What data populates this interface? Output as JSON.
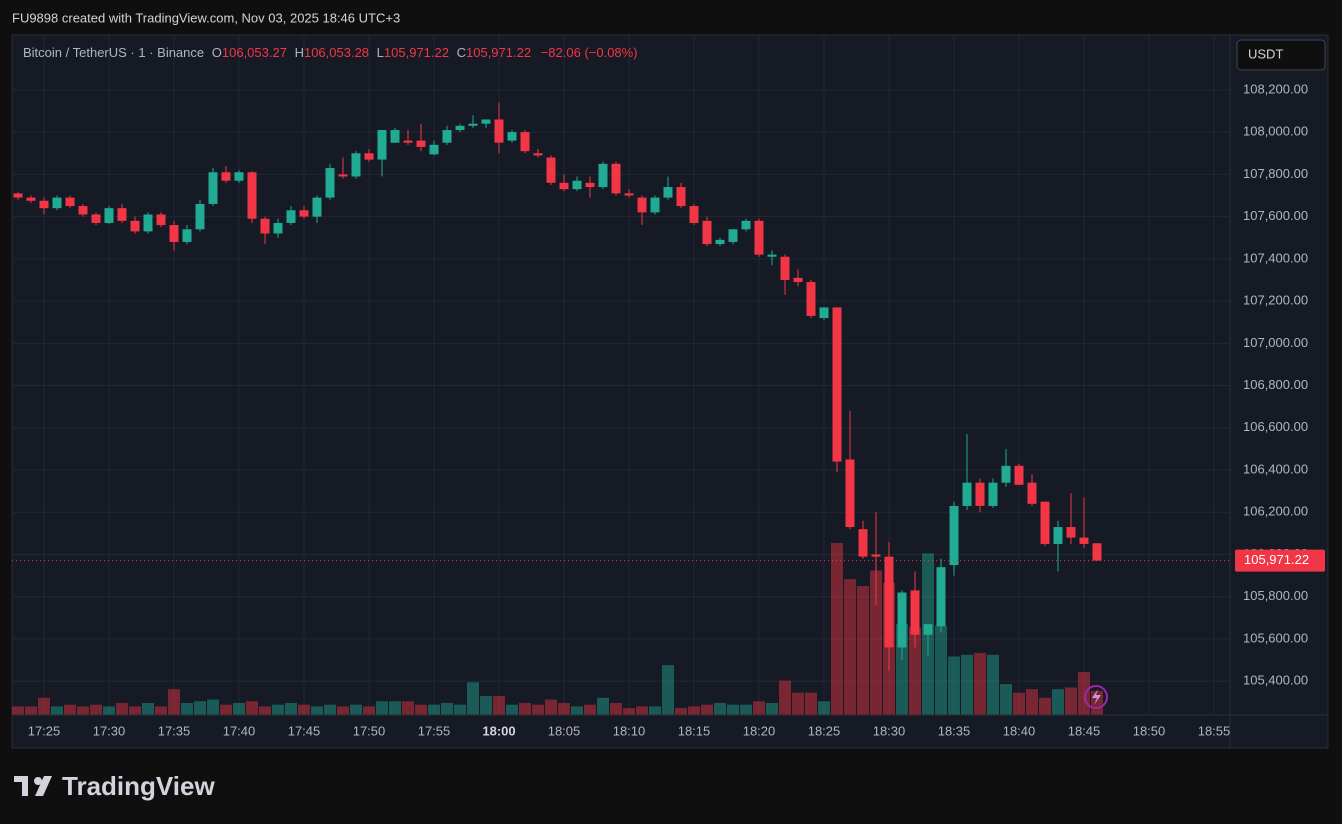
{
  "chart_data": {
    "type": "candlestick",
    "watermark": "FU9898 created with TradingView.com, Nov 03, 2025 18:46 UTC+3",
    "symbol": "Bitcoin / TetherUS · 1 · Binance",
    "ohlc_legend": {
      "o_key": "O",
      "o": "106,053.27",
      "h_key": "H",
      "h": "106,053.28",
      "l_key": "L",
      "l": "105,971.22",
      "c_key": "C",
      "c": "105,971.22",
      "change": "−82.06 (−0.08%)"
    },
    "currency": "USDT",
    "brand": "TradingView",
    "up_color": "#22ab94",
    "down_color": "#f23645",
    "categories": [
      null,
      null,
      "17:25",
      null,
      null,
      null,
      null,
      "17:30",
      null,
      null,
      null,
      null,
      "17:35",
      null,
      null,
      null,
      null,
      "17:40",
      null,
      null,
      null,
      null,
      "17:45",
      null,
      null,
      null,
      null,
      "17:50",
      null,
      null,
      null,
      null,
      "17:55",
      null,
      null,
      null,
      null,
      "18:00",
      null,
      null,
      null,
      null,
      "18:05",
      null,
      null,
      null,
      null,
      "18:10",
      null,
      null,
      null,
      null,
      "18:15",
      null,
      null,
      null,
      null,
      "18:20",
      null,
      null,
      null,
      null,
      "18:25",
      null,
      null,
      null,
      null,
      "18:30",
      null,
      null,
      null,
      null,
      "18:35",
      null,
      null,
      null,
      null,
      "18:40",
      null,
      null,
      null,
      null,
      "18:45",
      null,
      null,
      null,
      null,
      "18:50",
      null,
      null,
      null,
      null,
      "18:55"
    ],
    "open": [
      107710,
      107690,
      107675,
      107640,
      107690,
      107650,
      107610,
      107570,
      107640,
      107580,
      107530,
      107610,
      107560,
      107480,
      107540,
      107660,
      107810,
      107770,
      107810,
      107590,
      107520,
      107570,
      107630,
      107600,
      107690,
      107800,
      107790,
      107900,
      107870,
      107950,
      107960,
      107960,
      107895,
      107950,
      108010,
      108030,
      108040,
      108060,
      107960,
      108000,
      107900,
      107880,
      107760,
      107730,
      107760,
      107740,
      107850,
      107710,
      107690,
      107620,
      107690,
      107740,
      107650,
      107580,
      107470,
      107480,
      107540,
      107580,
      107410,
      107410,
      107310,
      107290,
      107120,
      107170,
      106450,
      106120,
      106000,
      105990,
      105560,
      105830,
      105620,
      105660,
      105950,
      106230,
      106340,
      106230,
      106340,
      106420,
      106340,
      106250,
      106050,
      106130,
      106080,
      106053.27,
      null,
      null,
      null,
      null,
      null,
      null,
      null,
      null,
      null
    ],
    "high": [
      107715,
      107700,
      107690,
      107700,
      107700,
      107660,
      107620,
      107650,
      107660,
      107600,
      107620,
      107620,
      107580,
      107560,
      107680,
      107830,
      107840,
      107820,
      107815,
      107600,
      107590,
      107650,
      107650,
      107700,
      107850,
      107880,
      107910,
      107920,
      108010,
      108020,
      108010,
      108040,
      107960,
      108030,
      108040,
      108080,
      108060,
      108140,
      108010,
      108010,
      107920,
      107890,
      107800,
      107790,
      107790,
      107860,
      107860,
      107730,
      107700,
      107700,
      107790,
      107760,
      107660,
      107600,
      107500,
      107540,
      107590,
      107590,
      107440,
      107420,
      107350,
      107300,
      107170,
      107170,
      106680,
      106160,
      106200,
      106060,
      105830,
      105920,
      105670,
      105980,
      106250,
      106570,
      106360,
      106360,
      106500,
      106430,
      106380,
      106250,
      106160,
      106290,
      106270,
      106053.28,
      null,
      null,
      null,
      null,
      null,
      null,
      null,
      null,
      null
    ],
    "low": [
      107680,
      107665,
      107610,
      107630,
      107640,
      107600,
      107560,
      107565,
      107570,
      107520,
      107520,
      107550,
      107440,
      107470,
      107530,
      107650,
      107760,
      107760,
      107570,
      107470,
      107500,
      107560,
      107590,
      107570,
      107680,
      107780,
      107780,
      107860,
      107790,
      107950,
      107940,
      107910,
      107890,
      107940,
      108000,
      108020,
      108020,
      107900,
      107950,
      107900,
      107880,
      107750,
      107720,
      107720,
      107690,
      107730,
      107700,
      107690,
      107560,
      107610,
      107680,
      107640,
      107560,
      107460,
      107460,
      107470,
      107530,
      107410,
      107370,
      107230,
      107270,
      107120,
      107110,
      106390,
      106120,
      105980,
      105760,
      105450,
      105500,
      105560,
      105520,
      105630,
      105900,
      106210,
      106200,
      106220,
      106320,
      106330,
      106230,
      106040,
      105920,
      106050,
      106030,
      105971.22,
      null,
      null,
      null,
      null,
      null,
      null,
      null,
      null,
      null
    ],
    "close": [
      107690,
      107675,
      107640,
      107690,
      107650,
      107610,
      107570,
      107640,
      107580,
      107530,
      107610,
      107560,
      107480,
      107540,
      107660,
      107810,
      107770,
      107810,
      107590,
      107520,
      107570,
      107630,
      107600,
      107690,
      107830,
      107790,
      107900,
      107870,
      108010,
      108010,
      107950,
      107930,
      107940,
      108010,
      108030,
      108040,
      108060,
      107950,
      108000,
      107910,
      107890,
      107760,
      107730,
      107770,
      107740,
      107850,
      107710,
      107700,
      107620,
      107690,
      107740,
      107650,
      107570,
      107470,
      107490,
      107540,
      107580,
      107420,
      107420,
      107300,
      107290,
      107130,
      107170,
      106440,
      106130,
      105990,
      105990,
      105560,
      105820,
      105620,
      105670,
      105940,
      106230,
      106340,
      106230,
      106340,
      106420,
      106330,
      106240,
      106050,
      106130,
      106080,
      106050,
      105971.22,
      null,
      null,
      null,
      null,
      null,
      null,
      null,
      null,
      null
    ],
    "volume": [
      5,
      5,
      10,
      5,
      6,
      5,
      6,
      5,
      7,
      5,
      7,
      5,
      15,
      7,
      8,
      9,
      6,
      7,
      8,
      5,
      6,
      7,
      6,
      5,
      6,
      5,
      6,
      5,
      8,
      8,
      8,
      6,
      6,
      7,
      6,
      19,
      11,
      11,
      6,
      7,
      6,
      9,
      7,
      5,
      6,
      10,
      7,
      4,
      5,
      5,
      29,
      4,
      5,
      6,
      7,
      6,
      6,
      8,
      7,
      20,
      13,
      13,
      8,
      100,
      79,
      75,
      84,
      77,
      53,
      51,
      94,
      52,
      34,
      35,
      36,
      35,
      18,
      13,
      15,
      10,
      15,
      16,
      25,
      14,
      null,
      null,
      null,
      null,
      null,
      null,
      null,
      null,
      null
    ],
    "vlim": [
      0,
      100
    ],
    "ylim": [
      105240,
      108460
    ],
    "yticks": [
      {
        "value": 105400,
        "label": "105,400.00"
      },
      {
        "value": 105600,
        "label": "105,600.00"
      },
      {
        "value": 105800,
        "label": "105,800.00"
      },
      {
        "value": 106000,
        "label": "106,000.00"
      },
      {
        "value": 106200,
        "label": "106,200.00"
      },
      {
        "value": 106400,
        "label": "106,400.00"
      },
      {
        "value": 106600,
        "label": "106,600.00"
      },
      {
        "value": 106800,
        "label": "106,800.00"
      },
      {
        "value": 107000,
        "label": "107,000.00"
      },
      {
        "value": 107200,
        "label": "107,200.00"
      },
      {
        "value": 107400,
        "label": "107,400.00"
      },
      {
        "value": 107600,
        "label": "107,600.00"
      },
      {
        "value": 107800,
        "label": "107,800.00"
      },
      {
        "value": 108000,
        "label": "108,000.00"
      },
      {
        "value": 108200,
        "label": "108,200.00"
      }
    ],
    "last_price": {
      "value": 105971.22,
      "label": "105,971.22"
    },
    "grid": true
  }
}
